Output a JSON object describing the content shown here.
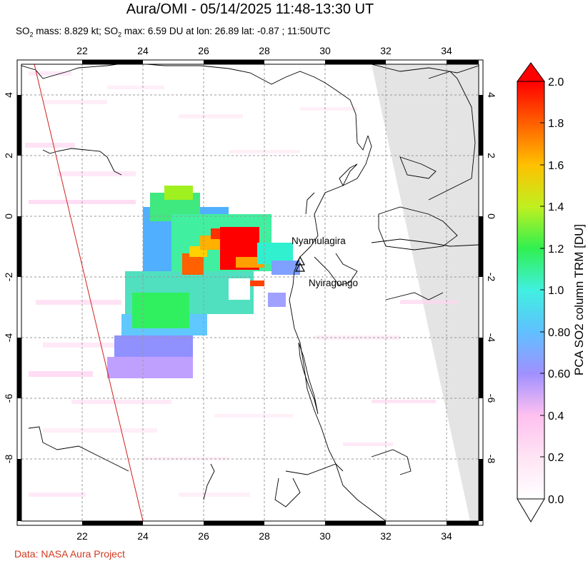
{
  "title": "Aura/OMI - 05/14/2025 11:48-13:30 UT",
  "subtitle": {
    "mass_label": "SO",
    "mass_sub": "2",
    "mass_text": " mass: 8.829 kt; SO",
    "max_sub": "2",
    "max_text": " max: 6.59 DU at lon: 26.89 lat: -0.87 ; 11:50UTC"
  },
  "credit": "Data: NASA Aura Project",
  "map": {
    "lon_range": [
      20,
      35
    ],
    "lat_range": [
      -10,
      5
    ],
    "lon_ticks": [
      "22",
      "24",
      "26",
      "28",
      "30",
      "32",
      "34"
    ],
    "lat_ticks": [
      "4",
      "2",
      "0",
      "-2",
      "-4",
      "-6",
      "-8"
    ],
    "volcanoes": [
      {
        "name": "Nyamulagira",
        "lon": 29.2,
        "lat": -1.41
      },
      {
        "name": "Nyiragongo",
        "lon": 29.25,
        "lat": -1.52
      }
    ]
  },
  "colorbar": {
    "title": "PCA SO2 column TRM [DU]",
    "labels": [
      "2.0",
      "1.8",
      "1.6",
      "1.4",
      "1.2",
      "1.0",
      "0.80",
      "0.60",
      "0.4",
      "0.2",
      "0.0"
    ],
    "colors": [
      "#ff0000",
      "#ff8000",
      "#ffe000",
      "#a0f020",
      "#30f060",
      "#40f0f0",
      "#8080ff",
      "#c080ff",
      "#ffc0f0",
      "#fff0f8",
      "#ffffff"
    ]
  }
}
